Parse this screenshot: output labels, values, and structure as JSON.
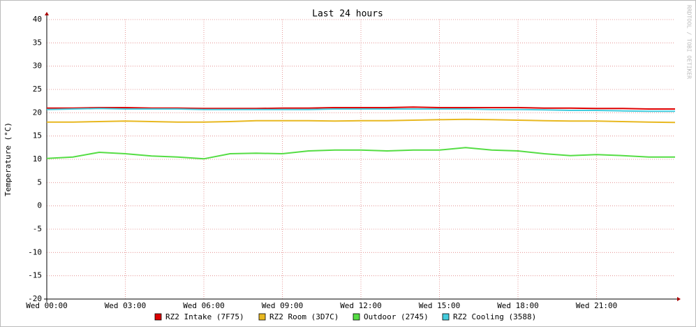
{
  "chart_data": {
    "type": "line",
    "title": "Last 24 hours",
    "y_label": "Temperature (°C)",
    "side_text": "RRDTOOL / TOBI OETIKER",
    "x": [
      0,
      1,
      2,
      3,
      4,
      5,
      6,
      7,
      8,
      9,
      10,
      11,
      12,
      13,
      14,
      15,
      16,
      17,
      18,
      19,
      20,
      21,
      22,
      23,
      24
    ],
    "xlim": [
      0,
      24
    ],
    "xticks": [
      {
        "value": 0,
        "label": "Wed 00:00"
      },
      {
        "value": 3,
        "label": "Wed 03:00"
      },
      {
        "value": 6,
        "label": "Wed 06:00"
      },
      {
        "value": 9,
        "label": "Wed 09:00"
      },
      {
        "value": 12,
        "label": "Wed 12:00"
      },
      {
        "value": 15,
        "label": "Wed 15:00"
      },
      {
        "value": 18,
        "label": "Wed 18:00"
      },
      {
        "value": 21,
        "label": "Wed 21:00"
      }
    ],
    "ylim": [
      -20,
      40
    ],
    "yticks": [
      -20,
      -15,
      -10,
      -5,
      0,
      5,
      10,
      15,
      20,
      25,
      30,
      35,
      40
    ],
    "grid": true,
    "series": [
      {
        "name": "RZ2 Intake (7F75)",
        "color": "#dd0000",
        "values": [
          21.0,
          21.0,
          21.1,
          21.1,
          21.0,
          21.0,
          20.9,
          20.9,
          20.9,
          21.0,
          21.0,
          21.1,
          21.1,
          21.1,
          21.2,
          21.1,
          21.1,
          21.1,
          21.1,
          21.0,
          21.0,
          20.9,
          20.9,
          20.8,
          20.8
        ]
      },
      {
        "name": "RZ2 Room (3D7C)",
        "color": "#e8b820",
        "values": [
          18.0,
          18.0,
          18.1,
          18.2,
          18.1,
          18.0,
          18.0,
          18.1,
          18.3,
          18.3,
          18.3,
          18.2,
          18.3,
          18.3,
          18.4,
          18.5,
          18.6,
          18.5,
          18.4,
          18.3,
          18.2,
          18.2,
          18.1,
          18.0,
          17.9
        ]
      },
      {
        "name": "Outdoor (2745)",
        "color": "#55dd44",
        "values": [
          10.2,
          10.5,
          11.5,
          11.2,
          10.7,
          10.5,
          10.1,
          11.2,
          11.3,
          11.2,
          11.8,
          12.0,
          12.0,
          11.8,
          12.0,
          12.0,
          12.5,
          12.0,
          11.8,
          11.2,
          10.8,
          11.0,
          10.8,
          10.5,
          10.5
        ]
      },
      {
        "name": "RZ2 Cooling (3588)",
        "color": "#44ccdd",
        "values": [
          20.7,
          20.8,
          20.9,
          20.8,
          20.8,
          20.8,
          20.7,
          20.7,
          20.7,
          20.7,
          20.7,
          20.8,
          20.8,
          20.8,
          20.8,
          20.8,
          20.8,
          20.7,
          20.7,
          20.6,
          20.5,
          20.5,
          20.4,
          20.3,
          20.3
        ]
      }
    ]
  }
}
